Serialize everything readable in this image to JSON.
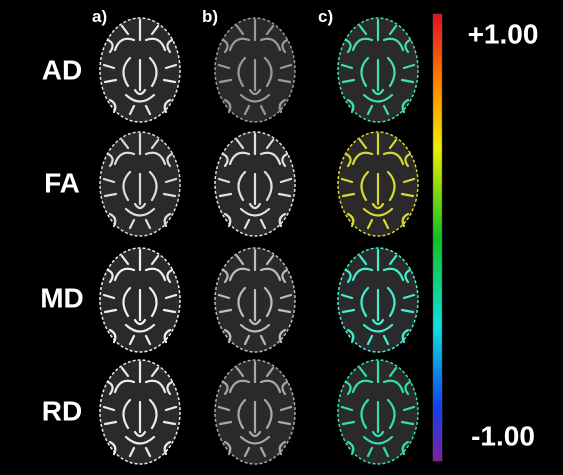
{
  "columns": [
    "a)",
    "b)",
    "c)"
  ],
  "rows": [
    "AD",
    "FA",
    "MD",
    "RD"
  ],
  "colorbar": {
    "top_label": "+1.00",
    "bottom_label": "-1.00"
  }
}
